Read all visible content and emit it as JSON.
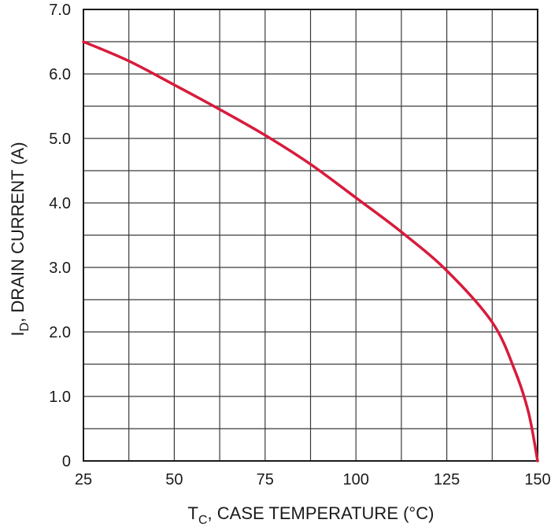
{
  "chart_data": {
    "type": "line",
    "xlabel": {
      "main": "T",
      "sub": "C",
      "rest": ", CASE TEMPERATURE (°C)"
    },
    "ylabel": {
      "main": "I",
      "sub": "D",
      "rest": ", DRAIN CURRENT (A)"
    },
    "xlim": [
      25,
      150
    ],
    "ylim": [
      0,
      7
    ],
    "x_ticks": [
      25,
      50,
      75,
      100,
      125,
      150
    ],
    "x_tick_labels": [
      "25",
      "50",
      "75",
      "100",
      "125",
      "150"
    ],
    "y_ticks": [
      0,
      1,
      2,
      3,
      4,
      5,
      6,
      7
    ],
    "y_tick_labels": [
      "0",
      "1.0",
      "2.0",
      "3.0",
      "4.0",
      "5.0",
      "6.0",
      "7.0"
    ],
    "grid": {
      "x_minor_step": 12.5,
      "y_minor_step": 0.5
    },
    "series": [
      {
        "color": "#d81b3c",
        "points": [
          [
            25,
            6.5
          ],
          [
            37.5,
            6.2
          ],
          [
            50,
            5.83
          ],
          [
            62.5,
            5.45
          ],
          [
            75,
            5.05
          ],
          [
            87.5,
            4.6
          ],
          [
            100,
            4.08
          ],
          [
            112.5,
            3.55
          ],
          [
            125,
            2.95
          ],
          [
            137.5,
            2.15
          ],
          [
            143.75,
            1.4
          ],
          [
            147.5,
            0.75
          ],
          [
            150,
            0.0
          ]
        ]
      }
    ]
  }
}
